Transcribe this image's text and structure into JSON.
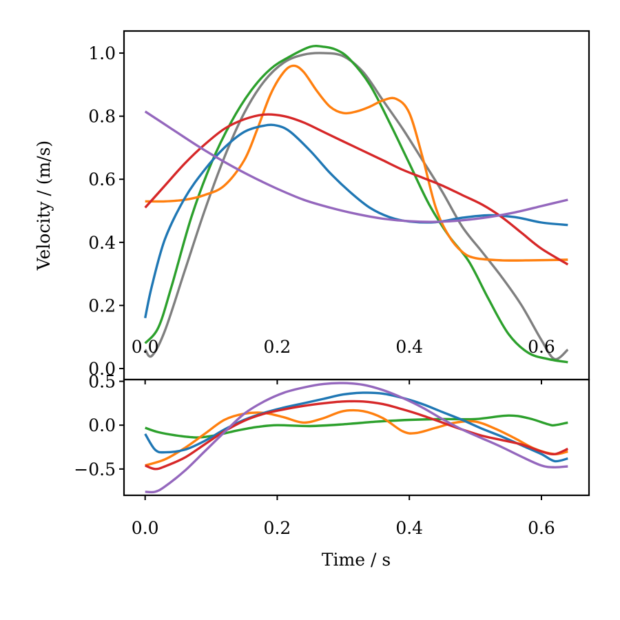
{
  "chart_data": [
    {
      "type": "line",
      "panel": "top",
      "title": "",
      "xlabel": "",
      "ylabel": "Velocity / (m/s)",
      "xlim": [
        -0.032,
        0.672
      ],
      "ylim": [
        -0.035,
        1.07
      ],
      "xticks": [
        0.0,
        0.2,
        0.4,
        0.6
      ],
      "xtick_labels": [
        "0.0",
        "0.2",
        "0.4",
        "0.6"
      ],
      "yticks": [
        0.0,
        0.2,
        0.4,
        0.6,
        0.8,
        1.0
      ],
      "ytick_labels": [
        "0.0",
        "0.2",
        "0.4",
        "0.6",
        "0.8",
        "1.0"
      ],
      "series": [
        {
          "name": "gray",
          "color": "#7f7f7f",
          "x": [
            0,
            0.01,
            0.03,
            0.06,
            0.09,
            0.12,
            0.15,
            0.18,
            0.21,
            0.24,
            0.27,
            0.3,
            0.33,
            0.36,
            0.39,
            0.42,
            0.45,
            0.48,
            0.51,
            0.54,
            0.57,
            0.6,
            0.62,
            0.64
          ],
          "y": [
            0.06,
            0.04,
            0.12,
            0.31,
            0.5,
            0.67,
            0.81,
            0.91,
            0.97,
            0.995,
            1.0,
            0.99,
            0.94,
            0.85,
            0.76,
            0.66,
            0.56,
            0.45,
            0.37,
            0.29,
            0.2,
            0.09,
            0.03,
            0.06
          ]
        },
        {
          "name": "green",
          "color": "#2ca02c",
          "x": [
            0,
            0.02,
            0.04,
            0.07,
            0.1,
            0.13,
            0.16,
            0.19,
            0.22,
            0.25,
            0.27,
            0.29,
            0.31,
            0.34,
            0.37,
            0.4,
            0.43,
            0.46,
            0.49,
            0.52,
            0.55,
            0.58,
            0.61,
            0.64
          ],
          "y": [
            0.08,
            0.13,
            0.26,
            0.48,
            0.65,
            0.78,
            0.88,
            0.95,
            0.99,
            1.02,
            1.02,
            1.01,
            0.98,
            0.9,
            0.78,
            0.65,
            0.52,
            0.42,
            0.34,
            0.22,
            0.11,
            0.05,
            0.03,
            0.02
          ]
        },
        {
          "name": "orange",
          "color": "#ff7f0e",
          "x": [
            0,
            0.03,
            0.06,
            0.09,
            0.12,
            0.15,
            0.17,
            0.19,
            0.21,
            0.225,
            0.24,
            0.26,
            0.28,
            0.3,
            0.32,
            0.34,
            0.36,
            0.38,
            0.4,
            0.42,
            0.44,
            0.46,
            0.48,
            0.5,
            0.54,
            0.58,
            0.64
          ],
          "y": [
            0.53,
            0.53,
            0.535,
            0.55,
            0.58,
            0.66,
            0.76,
            0.87,
            0.94,
            0.96,
            0.94,
            0.88,
            0.83,
            0.81,
            0.815,
            0.83,
            0.85,
            0.855,
            0.81,
            0.67,
            0.51,
            0.42,
            0.37,
            0.35,
            0.343,
            0.343,
            0.345
          ]
        },
        {
          "name": "blue",
          "color": "#1f77b4",
          "x": [
            0,
            0.01,
            0.03,
            0.06,
            0.09,
            0.12,
            0.15,
            0.18,
            0.2,
            0.22,
            0.25,
            0.28,
            0.31,
            0.34,
            0.37,
            0.4,
            0.44,
            0.48,
            0.52,
            0.56,
            0.6,
            0.64
          ],
          "y": [
            0.16,
            0.26,
            0.41,
            0.54,
            0.63,
            0.7,
            0.75,
            0.77,
            0.77,
            0.75,
            0.69,
            0.62,
            0.56,
            0.51,
            0.48,
            0.466,
            0.464,
            0.478,
            0.486,
            0.48,
            0.463,
            0.455
          ]
        },
        {
          "name": "red",
          "color": "#d62728",
          "x": [
            0,
            0.03,
            0.06,
            0.09,
            0.12,
            0.15,
            0.18,
            0.21,
            0.24,
            0.27,
            0.3,
            0.33,
            0.36,
            0.39,
            0.42,
            0.45,
            0.48,
            0.51,
            0.54,
            0.57,
            0.6,
            0.64
          ],
          "y": [
            0.51,
            0.58,
            0.65,
            0.71,
            0.76,
            0.79,
            0.805,
            0.8,
            0.78,
            0.75,
            0.72,
            0.69,
            0.66,
            0.63,
            0.605,
            0.58,
            0.55,
            0.52,
            0.48,
            0.43,
            0.38,
            0.33
          ]
        },
        {
          "name": "purple",
          "color": "#9467bd",
          "x": [
            0,
            0.04,
            0.08,
            0.12,
            0.16,
            0.2,
            0.24,
            0.28,
            0.32,
            0.36,
            0.4,
            0.44,
            0.48,
            0.52,
            0.56,
            0.6,
            0.64
          ],
          "y": [
            0.815,
            0.76,
            0.705,
            0.655,
            0.61,
            0.57,
            0.535,
            0.51,
            0.49,
            0.475,
            0.467,
            0.465,
            0.47,
            0.48,
            0.495,
            0.515,
            0.535
          ]
        }
      ]
    },
    {
      "type": "line",
      "panel": "bottom",
      "title": "",
      "xlabel": "Time / s",
      "ylabel": "",
      "xlim": [
        -0.032,
        0.672
      ],
      "ylim": [
        -0.8,
        0.52
      ],
      "xticks": [
        0.0,
        0.2,
        0.4,
        0.6
      ],
      "xtick_labels": [
        "0.0",
        "0.2",
        "0.4",
        "0.6"
      ],
      "yticks": [
        -0.5,
        0.0,
        0.5
      ],
      "ytick_labels": [
        "−0.5",
        "0.0",
        "0.5"
      ],
      "series": [
        {
          "name": "green",
          "color": "#2ca02c",
          "x": [
            0,
            0.02,
            0.05,
            0.08,
            0.11,
            0.14,
            0.17,
            0.2,
            0.25,
            0.3,
            0.35,
            0.4,
            0.45,
            0.5,
            0.55,
            0.58,
            0.61,
            0.62,
            0.64
          ],
          "y": [
            -0.03,
            -0.08,
            -0.12,
            -0.14,
            -0.11,
            -0.06,
            -0.02,
            0.0,
            -0.01,
            0.01,
            0.04,
            0.06,
            0.07,
            0.07,
            0.11,
            0.08,
            0.01,
            0.0,
            0.03
          ]
        },
        {
          "name": "orange",
          "color": "#ff7f0e",
          "x": [
            0,
            0.03,
            0.06,
            0.09,
            0.12,
            0.15,
            0.18,
            0.21,
            0.24,
            0.27,
            0.3,
            0.33,
            0.36,
            0.39,
            0.41,
            0.44,
            0.47,
            0.5,
            0.53,
            0.56,
            0.59,
            0.62,
            0.64
          ],
          "y": [
            -0.46,
            -0.39,
            -0.26,
            -0.1,
            0.06,
            0.13,
            0.14,
            0.09,
            0.03,
            0.08,
            0.16,
            0.16,
            0.08,
            -0.07,
            -0.09,
            -0.03,
            0.03,
            0.04,
            -0.04,
            -0.15,
            -0.27,
            -0.33,
            -0.3
          ]
        },
        {
          "name": "blue",
          "color": "#1f77b4",
          "x": [
            0,
            0.015,
            0.03,
            0.06,
            0.09,
            0.12,
            0.15,
            0.18,
            0.21,
            0.24,
            0.27,
            0.3,
            0.33,
            0.36,
            0.39,
            0.42,
            0.45,
            0.48,
            0.51,
            0.54,
            0.57,
            0.6,
            0.62,
            0.64
          ],
          "y": [
            -0.1,
            -0.28,
            -0.31,
            -0.28,
            -0.18,
            -0.05,
            0.06,
            0.14,
            0.2,
            0.25,
            0.3,
            0.35,
            0.37,
            0.36,
            0.31,
            0.24,
            0.15,
            0.06,
            -0.04,
            -0.13,
            -0.23,
            -0.33,
            -0.41,
            -0.38
          ]
        },
        {
          "name": "red",
          "color": "#d62728",
          "x": [
            0,
            0.015,
            0.03,
            0.06,
            0.09,
            0.12,
            0.15,
            0.18,
            0.21,
            0.24,
            0.27,
            0.3,
            0.33,
            0.36,
            0.39,
            0.42,
            0.45,
            0.48,
            0.51,
            0.54,
            0.57,
            0.6,
            0.62,
            0.64
          ],
          "y": [
            -0.46,
            -0.5,
            -0.47,
            -0.37,
            -0.22,
            -0.07,
            0.05,
            0.13,
            0.18,
            0.22,
            0.25,
            0.27,
            0.27,
            0.24,
            0.18,
            0.11,
            0.03,
            -0.05,
            -0.12,
            -0.17,
            -0.22,
            -0.3,
            -0.33,
            -0.27
          ]
        },
        {
          "name": "purple",
          "color": "#9467bd",
          "x": [
            0,
            0.015,
            0.03,
            0.06,
            0.09,
            0.12,
            0.15,
            0.18,
            0.21,
            0.24,
            0.27,
            0.3,
            0.33,
            0.36,
            0.39,
            0.42,
            0.45,
            0.48,
            0.51,
            0.54,
            0.57,
            0.6,
            0.62,
            0.64
          ],
          "y": [
            -0.76,
            -0.76,
            -0.7,
            -0.52,
            -0.3,
            -0.08,
            0.13,
            0.27,
            0.37,
            0.43,
            0.47,
            0.48,
            0.46,
            0.4,
            0.31,
            0.2,
            0.07,
            -0.05,
            -0.15,
            -0.25,
            -0.36,
            -0.46,
            -0.48,
            -0.47
          ]
        }
      ]
    }
  ]
}
